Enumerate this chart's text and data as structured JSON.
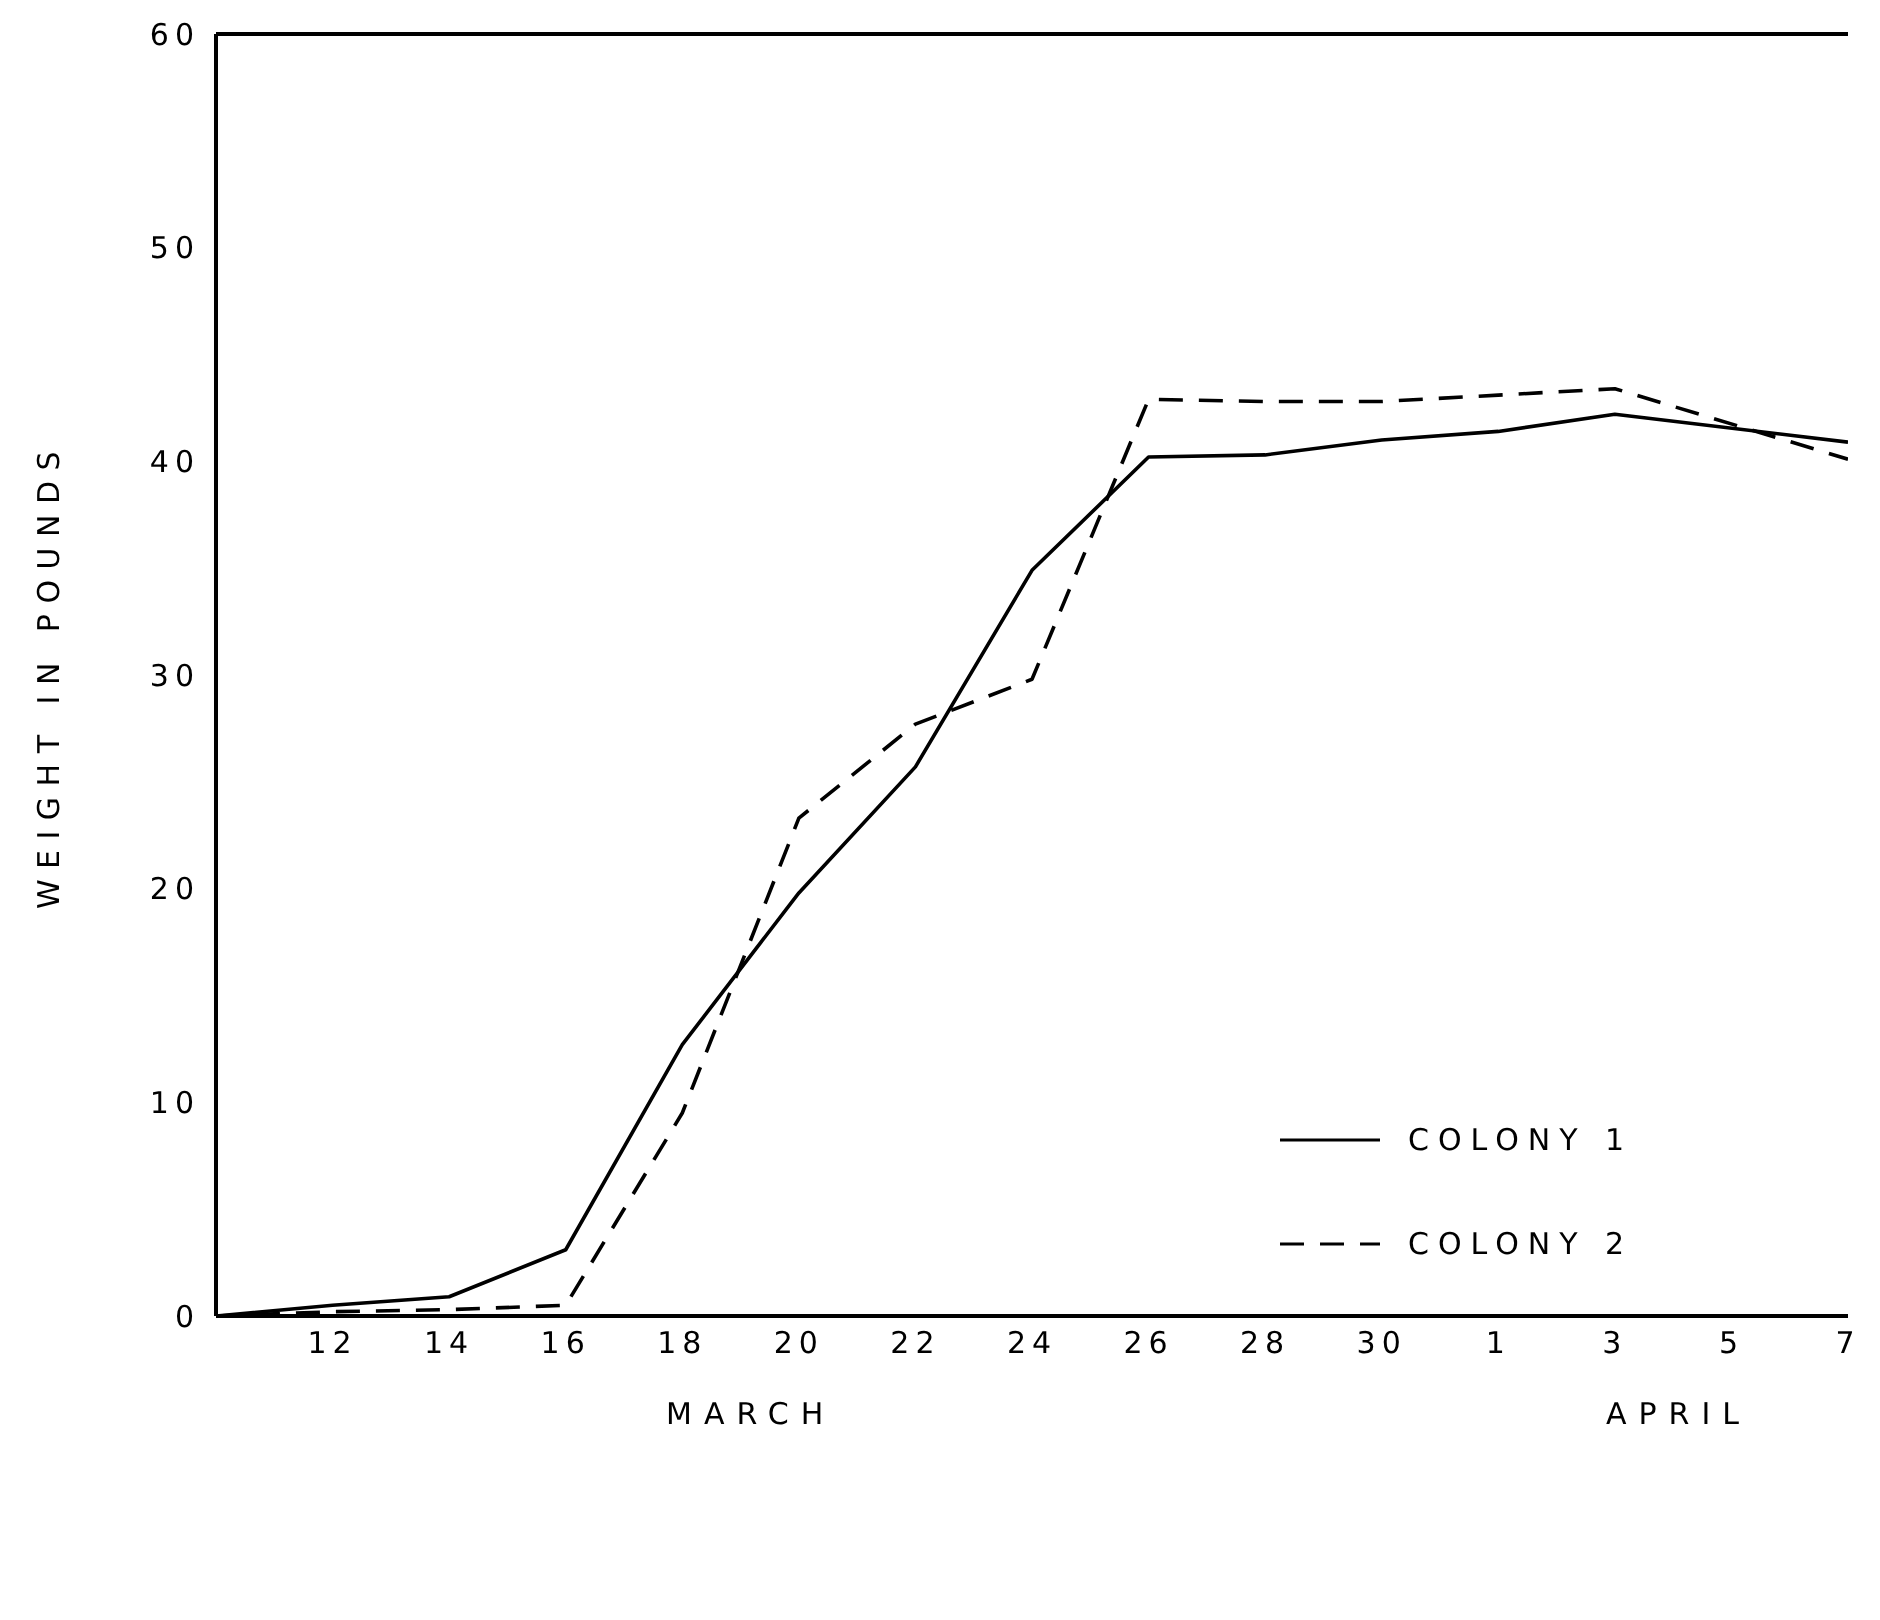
{
  "chart_data": {
    "type": "line",
    "ylabel": "WEIGHT IN POUNDS",
    "x": [
      "--03-10",
      "--03-12",
      "--03-14",
      "--03-16",
      "--03-18",
      "--03-20",
      "--03-22",
      "--03-24",
      "--03-26",
      "--03-28",
      "--03-30",
      "--04-01",
      "--04-03",
      "--04-07"
    ],
    "series": [
      {
        "name": "COLONY 1",
        "color": "#000000",
        "line_style": "solid",
        "values": [
          0,
          0.5,
          0.9,
          3.1,
          12.7,
          19.8,
          25.7,
          34.9,
          40.2,
          40.3,
          41.0,
          41.4,
          42.2,
          40.9
        ]
      },
      {
        "name": "COLONY 2",
        "color": "#000000",
        "line_style": "dashed",
        "values": [
          0,
          0.2,
          0.3,
          0.5,
          9.5,
          23.3,
          27.7,
          29.8,
          42.9,
          42.8,
          42.8,
          43.1,
          43.4,
          40.1
        ]
      }
    ],
    "xlim": [
      "--03-10",
      "--04-07"
    ],
    "xticks": [
      {
        "value": "--03-12",
        "label": "12"
      },
      {
        "value": "--03-14",
        "label": "14"
      },
      {
        "value": "--03-16",
        "label": "16"
      },
      {
        "value": "--03-18",
        "label": "18"
      },
      {
        "value": "--03-20",
        "label": "20"
      },
      {
        "value": "--03-22",
        "label": "22"
      },
      {
        "value": "--03-24",
        "label": "24"
      },
      {
        "value": "--03-26",
        "label": "26"
      },
      {
        "value": "--03-28",
        "label": "28"
      },
      {
        "value": "--03-30",
        "label": "30"
      },
      {
        "value": "--04-01",
        "label": "1"
      },
      {
        "value": "--04-03",
        "label": "3"
      },
      {
        "value": "--04-05",
        "label": "5"
      },
      {
        "value": "--04-07",
        "label": "7"
      }
    ],
    "ylim": [
      0,
      60
    ],
    "yticks": [
      0,
      10,
      20,
      30,
      40,
      50,
      60
    ],
    "annotations": [
      "MARCH",
      "APRIL"
    ],
    "grid": false,
    "legend": "bottom right",
    "marker": "none"
  }
}
